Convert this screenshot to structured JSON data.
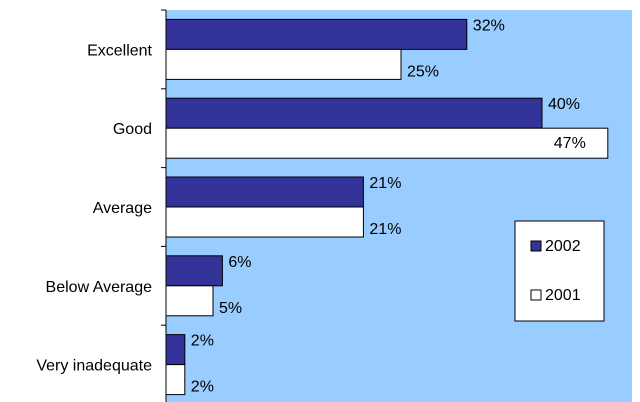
{
  "chart_data": {
    "type": "bar",
    "orientation": "horizontal",
    "categories": [
      "Excellent",
      "Good",
      "Average",
      "Below Average",
      "Very inadequate"
    ],
    "series": [
      {
        "name": "2002",
        "values": [
          32,
          40,
          21,
          6,
          2
        ],
        "labels": [
          "32%",
          "40%",
          "21%",
          "6%",
          "2%"
        ],
        "color": "#333399"
      },
      {
        "name": "2001",
        "values": [
          25,
          47,
          21,
          5,
          2
        ],
        "labels": [
          "25%",
          "47%",
          "21%",
          "5%",
          "2%"
        ],
        "color": "#ffffff"
      }
    ],
    "xlim": [
      0,
      50
    ],
    "legend_position": "right",
    "grid": false,
    "plot_background": "#99ccff"
  }
}
